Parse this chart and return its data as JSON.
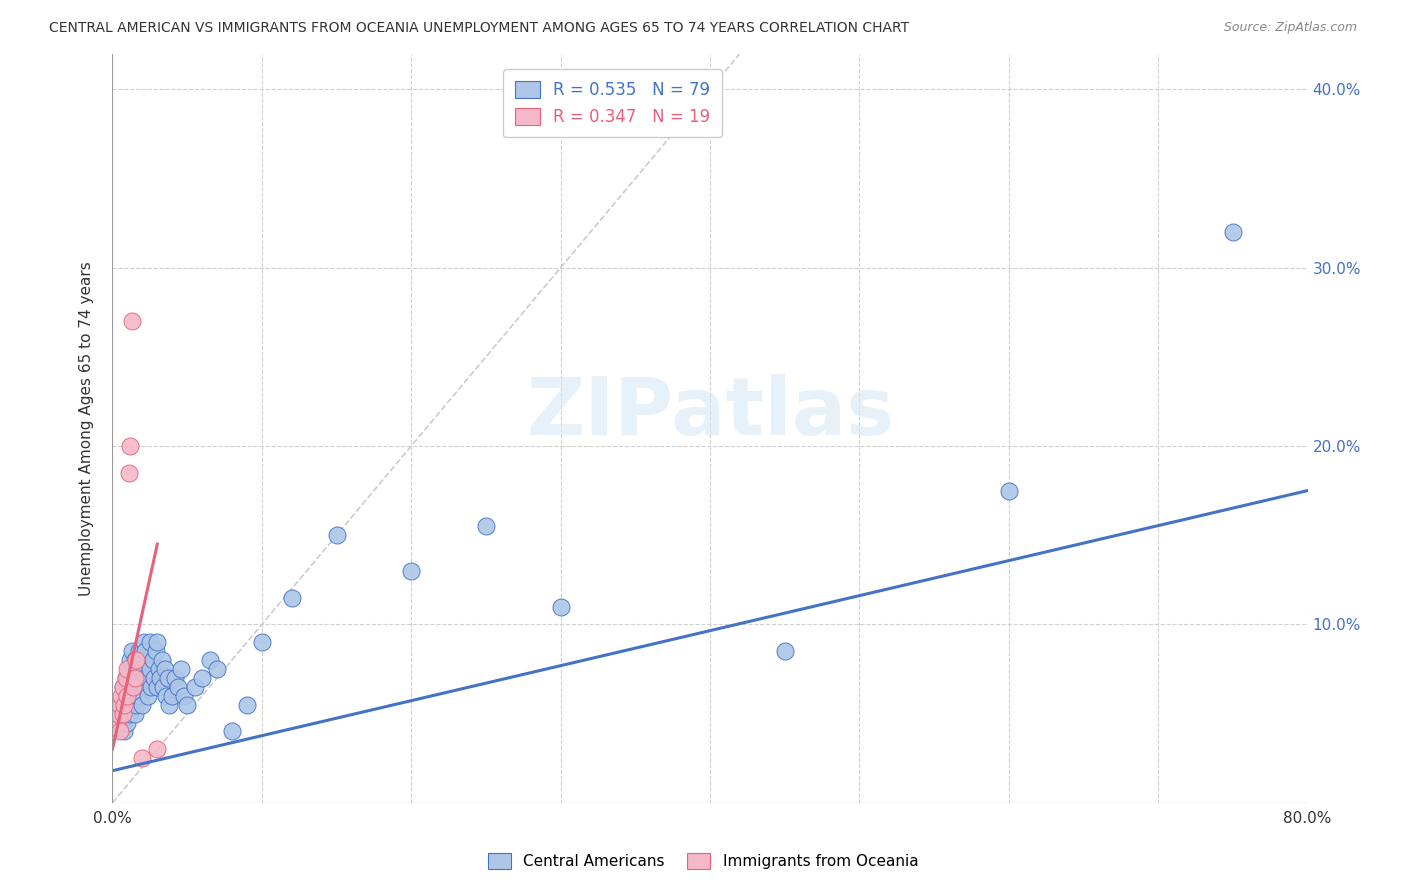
{
  "title": "CENTRAL AMERICAN VS IMMIGRANTS FROM OCEANIA UNEMPLOYMENT AMONG AGES 65 TO 74 YEARS CORRELATION CHART",
  "source": "Source: ZipAtlas.com",
  "ylabel": "Unemployment Among Ages 65 to 74 years",
  "xlim": [
    0.0,
    0.8
  ],
  "ylim": [
    0.0,
    0.42
  ],
  "xticks": [
    0.0,
    0.1,
    0.2,
    0.3,
    0.4,
    0.5,
    0.6,
    0.7,
    0.8
  ],
  "yticks": [
    0.0,
    0.1,
    0.2,
    0.3,
    0.4
  ],
  "legend_r_blue": "R = 0.535",
  "legend_n_blue": "N = 79",
  "legend_r_pink": "R = 0.347",
  "legend_n_pink": "N = 19",
  "watermark": "ZIPatlas",
  "blue_scatter_x": [
    0.005,
    0.006,
    0.007,
    0.007,
    0.008,
    0.008,
    0.009,
    0.009,
    0.009,
    0.01,
    0.01,
    0.01,
    0.011,
    0.011,
    0.011,
    0.012,
    0.012,
    0.012,
    0.013,
    0.013,
    0.013,
    0.014,
    0.014,
    0.015,
    0.015,
    0.015,
    0.016,
    0.016,
    0.017,
    0.017,
    0.018,
    0.018,
    0.019,
    0.019,
    0.02,
    0.02,
    0.021,
    0.021,
    0.022,
    0.022,
    0.023,
    0.024,
    0.025,
    0.025,
    0.026,
    0.027,
    0.028,
    0.029,
    0.03,
    0.03,
    0.031,
    0.032,
    0.033,
    0.034,
    0.035,
    0.036,
    0.037,
    0.038,
    0.04,
    0.042,
    0.044,
    0.046,
    0.048,
    0.05,
    0.055,
    0.06,
    0.065,
    0.07,
    0.08,
    0.09,
    0.1,
    0.12,
    0.15,
    0.2,
    0.25,
    0.3,
    0.45,
    0.6,
    0.75
  ],
  "blue_scatter_y": [
    0.05,
    0.055,
    0.045,
    0.065,
    0.04,
    0.06,
    0.05,
    0.07,
    0.055,
    0.06,
    0.045,
    0.07,
    0.055,
    0.065,
    0.075,
    0.05,
    0.065,
    0.08,
    0.055,
    0.07,
    0.085,
    0.06,
    0.075,
    0.05,
    0.065,
    0.08,
    0.055,
    0.075,
    0.06,
    0.08,
    0.065,
    0.085,
    0.06,
    0.08,
    0.055,
    0.075,
    0.07,
    0.09,
    0.065,
    0.085,
    0.07,
    0.06,
    0.075,
    0.09,
    0.065,
    0.08,
    0.07,
    0.085,
    0.065,
    0.09,
    0.075,
    0.07,
    0.08,
    0.065,
    0.075,
    0.06,
    0.07,
    0.055,
    0.06,
    0.07,
    0.065,
    0.075,
    0.06,
    0.055,
    0.065,
    0.07,
    0.08,
    0.075,
    0.04,
    0.055,
    0.09,
    0.115,
    0.15,
    0.13,
    0.155,
    0.11,
    0.085,
    0.175,
    0.32
  ],
  "pink_scatter_x": [
    0.003,
    0.004,
    0.005,
    0.005,
    0.006,
    0.007,
    0.007,
    0.008,
    0.009,
    0.01,
    0.01,
    0.011,
    0.012,
    0.013,
    0.014,
    0.015,
    0.016,
    0.02,
    0.03
  ],
  "pink_scatter_y": [
    0.045,
    0.05,
    0.055,
    0.04,
    0.06,
    0.05,
    0.065,
    0.055,
    0.07,
    0.06,
    0.075,
    0.185,
    0.2,
    0.27,
    0.065,
    0.07,
    0.08,
    0.025,
    0.03
  ],
  "blue_line_x": [
    0.0,
    0.8
  ],
  "blue_line_y": [
    0.018,
    0.175
  ],
  "pink_line_x": [
    0.0,
    0.03
  ],
  "pink_line_y": [
    0.03,
    0.145
  ],
  "diag_line_x": [
    0.0,
    0.42
  ],
  "diag_line_y": [
    0.0,
    0.42
  ],
  "blue_color": "#adc6e8",
  "blue_line_color": "#4472c4",
  "pink_color": "#f4b8c8",
  "pink_line_color": "#e8607a",
  "diag_color": "#cccccc",
  "bg_color": "#ffffff",
  "grid_color": "#d0d0d0"
}
